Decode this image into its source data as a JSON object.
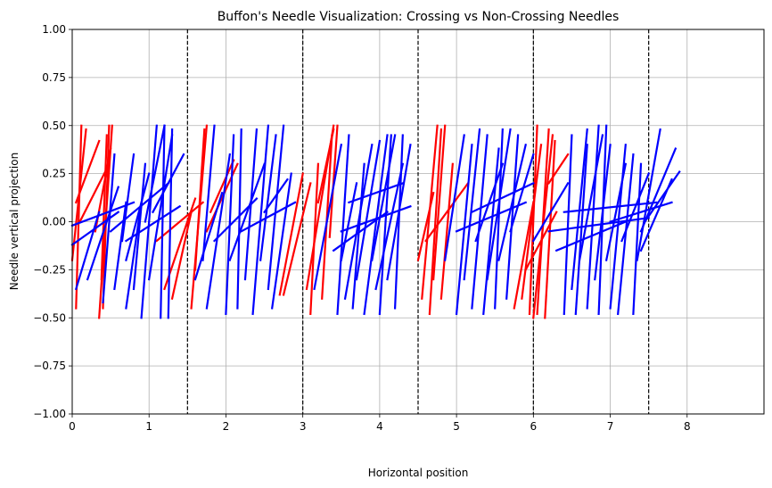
{
  "chart_data": {
    "type": "line",
    "title": "Buffon's Needle Visualization: Crossing vs Non-Crossing Needles",
    "xlabel": "Horizontal position",
    "ylabel": "Needle vertical projection",
    "xlim": [
      0,
      9
    ],
    "ylim": [
      -1.0,
      1.0
    ],
    "x_ticks": [
      0,
      1,
      2,
      3,
      4,
      5,
      6,
      7,
      8
    ],
    "y_ticks": [
      -1.0,
      -0.75,
      -0.5,
      -0.25,
      0.0,
      0.25,
      0.5,
      0.75,
      1.0
    ],
    "grid": true,
    "vertical_lines": {
      "x": [
        1.5,
        3.0,
        4.5,
        6.0,
        7.5
      ],
      "color": "#000000",
      "style": "dashed"
    },
    "series": [
      {
        "color": "#ff0000",
        "needles": [
          [
            [
              0.05,
              -0.45
            ],
            [
              0.12,
              0.5
            ]
          ],
          [
            [
              0.0,
              -0.2
            ],
            [
              0.18,
              0.48
            ]
          ],
          [
            [
              0.05,
              0.1
            ],
            [
              0.35,
              0.42
            ]
          ],
          [
            [
              0.35,
              -0.5
            ],
            [
              0.52,
              0.5
            ]
          ],
          [
            [
              0.38,
              -0.3
            ],
            [
              0.45,
              0.45
            ]
          ],
          [
            [
              0.4,
              -0.45
            ],
            [
              0.48,
              0.5
            ]
          ],
          [
            [
              0.3,
              -0.05
            ],
            [
              0.5,
              0.38
            ]
          ],
          [
            [
              0.1,
              0.0
            ],
            [
              0.48,
              0.3
            ]
          ],
          [
            [
              1.2,
              -0.35
            ],
            [
              1.6,
              0.12
            ]
          ],
          [
            [
              1.1,
              -0.1
            ],
            [
              1.7,
              0.1
            ]
          ],
          [
            [
              1.55,
              -0.45
            ],
            [
              1.75,
              0.5
            ]
          ],
          [
            [
              1.6,
              -0.25
            ],
            [
              1.72,
              0.48
            ]
          ],
          [
            [
              1.75,
              -0.05
            ],
            [
              2.15,
              0.3
            ]
          ],
          [
            [
              1.3,
              -0.4
            ],
            [
              1.55,
              0.05
            ]
          ],
          [
            [
              1.8,
              0.05
            ],
            [
              2.1,
              0.32
            ]
          ],
          [
            [
              2.7,
              -0.38
            ],
            [
              3.0,
              0.25
            ]
          ],
          [
            [
              2.75,
              -0.38
            ],
            [
              3.1,
              0.2
            ]
          ],
          [
            [
              3.05,
              -0.35
            ],
            [
              3.4,
              0.5
            ]
          ],
          [
            [
              3.1,
              -0.48
            ],
            [
              3.2,
              0.3
            ]
          ],
          [
            [
              3.35,
              -0.08
            ],
            [
              3.45,
              0.5
            ]
          ],
          [
            [
              3.25,
              -0.4
            ],
            [
              3.38,
              0.45
            ]
          ],
          [
            [
              3.2,
              0.1
            ],
            [
              3.4,
              0.48
            ]
          ],
          [
            [
              4.55,
              -0.4
            ],
            [
              4.75,
              0.5
            ]
          ],
          [
            [
              4.65,
              -0.48
            ],
            [
              4.8,
              0.48
            ]
          ],
          [
            [
              4.7,
              -0.3
            ],
            [
              4.85,
              0.5
            ]
          ],
          [
            [
              4.8,
              -0.4
            ],
            [
              4.95,
              0.3
            ]
          ],
          [
            [
              4.6,
              -0.1
            ],
            [
              5.15,
              0.2
            ]
          ],
          [
            [
              4.5,
              -0.2
            ],
            [
              4.7,
              0.15
            ]
          ],
          [
            [
              5.75,
              -0.45
            ],
            [
              6.0,
              0.1
            ]
          ],
          [
            [
              5.85,
              -0.4
            ],
            [
              6.1,
              0.4
            ]
          ],
          [
            [
              5.95,
              -0.48
            ],
            [
              6.05,
              0.5
            ]
          ],
          [
            [
              6.0,
              -0.5
            ],
            [
              6.25,
              0.45
            ]
          ],
          [
            [
              6.05,
              -0.48
            ],
            [
              6.2,
              0.48
            ]
          ],
          [
            [
              6.15,
              -0.5
            ],
            [
              6.28,
              0.42
            ]
          ],
          [
            [
              5.9,
              -0.25
            ],
            [
              6.3,
              0.05
            ]
          ],
          [
            [
              6.2,
              0.2
            ],
            [
              6.45,
              0.35
            ]
          ]
        ]
      },
      {
        "color": "#0000ff",
        "needles": [
          [
            [
              0.0,
              -0.12
            ],
            [
              0.6,
              0.05
            ]
          ],
          [
            [
              0.0,
              -0.02
            ],
            [
              0.8,
              0.1
            ]
          ],
          [
            [
              0.05,
              -0.35
            ],
            [
              0.35,
              0.05
            ]
          ],
          [
            [
              0.2,
              -0.3
            ],
            [
              0.6,
              0.18
            ]
          ],
          [
            [
              0.4,
              -0.42
            ],
            [
              0.55,
              0.35
            ]
          ],
          [
            [
              0.55,
              -0.35
            ],
            [
              0.7,
              0.1
            ]
          ],
          [
            [
              0.65,
              -0.1
            ],
            [
              0.8,
              0.35
            ]
          ],
          [
            [
              0.7,
              -0.2
            ],
            [
              1.0,
              0.25
            ]
          ],
          [
            [
              0.7,
              -0.45
            ],
            [
              0.9,
              0.1
            ]
          ],
          [
            [
              0.8,
              -0.35
            ],
            [
              0.95,
              0.3
            ]
          ],
          [
            [
              0.9,
              -0.5
            ],
            [
              1.1,
              0.5
            ]
          ],
          [
            [
              0.95,
              0.0
            ],
            [
              1.2,
              0.5
            ]
          ],
          [
            [
              1.0,
              -0.3
            ],
            [
              1.3,
              0.45
            ]
          ],
          [
            [
              1.05,
              0.05
            ],
            [
              1.45,
              0.35
            ]
          ],
          [
            [
              1.15,
              -0.5
            ],
            [
              1.2,
              0.5
            ]
          ],
          [
            [
              1.25,
              -0.5
            ],
            [
              1.3,
              0.48
            ]
          ],
          [
            [
              0.7,
              -0.1
            ],
            [
              1.4,
              0.08
            ]
          ],
          [
            [
              0.5,
              -0.05
            ],
            [
              1.25,
              0.2
            ]
          ],
          [
            [
              1.6,
              -0.3
            ],
            [
              1.95,
              0.15
            ]
          ],
          [
            [
              1.7,
              -0.2
            ],
            [
              1.85,
              0.5
            ]
          ],
          [
            [
              1.75,
              -0.45
            ],
            [
              2.05,
              0.35
            ]
          ],
          [
            [
              1.85,
              -0.1
            ],
            [
              2.4,
              0.12
            ]
          ],
          [
            [
              2.0,
              -0.48
            ],
            [
              2.1,
              0.45
            ]
          ],
          [
            [
              2.05,
              -0.2
            ],
            [
              2.5,
              0.3
            ]
          ],
          [
            [
              2.15,
              -0.45
            ],
            [
              2.2,
              0.48
            ]
          ],
          [
            [
              2.25,
              -0.3
            ],
            [
              2.4,
              0.48
            ]
          ],
          [
            [
              2.35,
              -0.48
            ],
            [
              2.55,
              0.5
            ]
          ],
          [
            [
              2.45,
              -0.2
            ],
            [
              2.65,
              0.45
            ]
          ],
          [
            [
              2.55,
              -0.35
            ],
            [
              2.75,
              0.5
            ]
          ],
          [
            [
              2.6,
              -0.45
            ],
            [
              2.85,
              0.25
            ]
          ],
          [
            [
              2.2,
              -0.05
            ],
            [
              2.9,
              0.1
            ]
          ],
          [
            [
              2.5,
              0.05
            ],
            [
              2.8,
              0.22
            ]
          ],
          [
            [
              3.15,
              -0.35
            ],
            [
              3.5,
              0.4
            ]
          ],
          [
            [
              3.45,
              -0.48
            ],
            [
              3.6,
              0.45
            ]
          ],
          [
            [
              3.5,
              -0.2
            ],
            [
              3.7,
              0.2
            ]
          ],
          [
            [
              3.55,
              -0.4
            ],
            [
              3.9,
              0.4
            ]
          ],
          [
            [
              3.65,
              -0.45
            ],
            [
              3.8,
              0.3
            ]
          ],
          [
            [
              3.7,
              -0.3
            ],
            [
              4.0,
              0.42
            ]
          ],
          [
            [
              3.8,
              -0.48
            ],
            [
              4.1,
              0.45
            ]
          ],
          [
            [
              3.9,
              -0.2
            ],
            [
              4.2,
              0.45
            ]
          ],
          [
            [
              3.95,
              -0.35
            ],
            [
              4.3,
              0.3
            ]
          ],
          [
            [
              4.0,
              -0.48
            ],
            [
              4.15,
              0.45
            ]
          ],
          [
            [
              4.1,
              -0.3
            ],
            [
              4.4,
              0.4
            ]
          ],
          [
            [
              4.2,
              -0.45
            ],
            [
              4.3,
              0.45
            ]
          ],
          [
            [
              3.5,
              -0.05
            ],
            [
              4.4,
              0.08
            ]
          ],
          [
            [
              3.4,
              -0.15
            ],
            [
              4.1,
              0.05
            ]
          ],
          [
            [
              3.6,
              0.1
            ],
            [
              4.3,
              0.2
            ]
          ],
          [
            [
              4.85,
              -0.2
            ],
            [
              5.1,
              0.45
            ]
          ],
          [
            [
              5.0,
              -0.48
            ],
            [
              5.2,
              0.4
            ]
          ],
          [
            [
              5.1,
              -0.3
            ],
            [
              5.3,
              0.48
            ]
          ],
          [
            [
              5.2,
              -0.45
            ],
            [
              5.4,
              0.45
            ]
          ],
          [
            [
              5.25,
              -0.1
            ],
            [
              5.6,
              0.3
            ]
          ],
          [
            [
              5.35,
              -0.48
            ],
            [
              5.55,
              0.38
            ]
          ],
          [
            [
              5.4,
              -0.3
            ],
            [
              5.7,
              0.48
            ]
          ],
          [
            [
              5.5,
              -0.45
            ],
            [
              5.6,
              0.48
            ]
          ],
          [
            [
              5.55,
              -0.2
            ],
            [
              5.9,
              0.4
            ]
          ],
          [
            [
              5.65,
              -0.4
            ],
            [
              5.8,
              0.45
            ]
          ],
          [
            [
              5.7,
              -0.05
            ],
            [
              6.0,
              0.35
            ]
          ],
          [
            [
              5.0,
              -0.05
            ],
            [
              5.9,
              0.1
            ]
          ],
          [
            [
              5.2,
              0.05
            ],
            [
              6.0,
              0.2
            ]
          ],
          [
            [
              6.0,
              -0.1
            ],
            [
              6.45,
              0.2
            ]
          ],
          [
            [
              6.4,
              -0.48
            ],
            [
              6.5,
              0.45
            ]
          ],
          [
            [
              6.5,
              -0.35
            ],
            [
              6.7,
              0.48
            ]
          ],
          [
            [
              6.55,
              -0.48
            ],
            [
              6.7,
              0.4
            ]
          ],
          [
            [
              6.6,
              -0.2
            ],
            [
              6.9,
              0.45
            ]
          ],
          [
            [
              6.7,
              -0.45
            ],
            [
              6.85,
              0.5
            ]
          ],
          [
            [
              6.8,
              -0.3
            ],
            [
              7.0,
              0.4
            ]
          ],
          [
            [
              6.85,
              -0.48
            ],
            [
              6.95,
              0.5
            ]
          ],
          [
            [
              6.95,
              -0.2
            ],
            [
              7.2,
              0.3
            ]
          ],
          [
            [
              7.0,
              -0.45
            ],
            [
              7.2,
              0.4
            ]
          ],
          [
            [
              7.1,
              -0.48
            ],
            [
              7.3,
              0.35
            ]
          ],
          [
            [
              7.15,
              -0.1
            ],
            [
              7.5,
              0.25
            ]
          ],
          [
            [
              7.3,
              -0.48
            ],
            [
              7.4,
              0.3
            ]
          ],
          [
            [
              7.35,
              -0.2
            ],
            [
              7.65,
              0.48
            ]
          ],
          [
            [
              7.4,
              -0.05
            ],
            [
              7.85,
              0.38
            ]
          ],
          [
            [
              7.45,
              0.0
            ],
            [
              7.9,
              0.26
            ]
          ],
          [
            [
              7.4,
              -0.15
            ],
            [
              7.8,
              0.22
            ]
          ],
          [
            [
              6.2,
              -0.05
            ],
            [
              7.5,
              0.02
            ]
          ],
          [
            [
              6.4,
              0.05
            ],
            [
              7.6,
              0.1
            ]
          ],
          [
            [
              6.3,
              -0.15
            ],
            [
              7.2,
              0.0
            ]
          ],
          [
            [
              7.0,
              0.0
            ],
            [
              7.8,
              0.1
            ]
          ]
        ]
      }
    ]
  }
}
